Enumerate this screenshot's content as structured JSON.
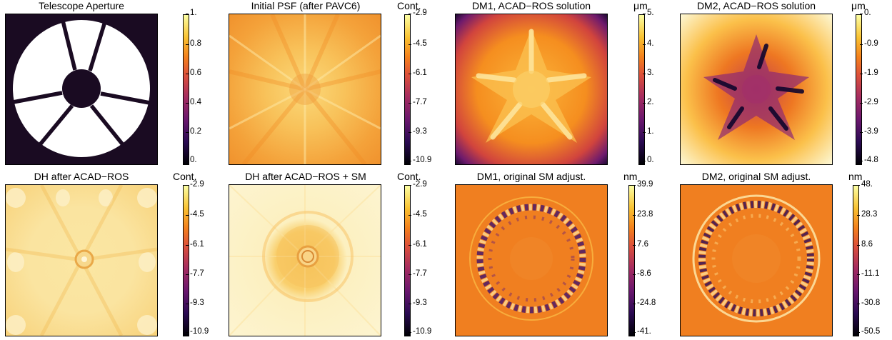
{
  "panels": [
    {
      "title": "Telescope Aperture",
      "unit": "",
      "ticks": [
        "1.",
        "0.8",
        "0.6",
        "0.4",
        "0.2",
        "0."
      ],
      "colormap": "inferno"
    },
    {
      "title": "Initial PSF (after PAVC6)",
      "unit": "Cont.",
      "ticks": [
        "-2.9",
        "-4.5",
        "-6.1",
        "-7.7",
        "-9.3",
        "-10.9"
      ],
      "colormap": "inferno"
    },
    {
      "title": "DM1, ACAD−ROS solution",
      "unit": "μm",
      "ticks": [
        "5.",
        "4.",
        "3.",
        "2.",
        "1.",
        "0."
      ],
      "colormap": "inferno"
    },
    {
      "title": "DM2, ACAD−ROS solution",
      "unit": "μm",
      "ticks": [
        "0.",
        "-0.9",
        "-1.9",
        "-2.9",
        "-3.9",
        "-4.8"
      ],
      "colormap": "inferno"
    },
    {
      "title": "DH after ACAD−ROS",
      "unit": "Cont.",
      "ticks": [
        "-2.9",
        "-4.5",
        "-6.1",
        "-7.7",
        "-9.3",
        "-10.9"
      ],
      "colormap": "inferno"
    },
    {
      "title": "DH after ACAD−ROS + SM",
      "unit": "Cont.",
      "ticks": [
        "-2.9",
        "-4.5",
        "-6.1",
        "-7.7",
        "-9.3",
        "-10.9"
      ],
      "colormap": "inferno"
    },
    {
      "title": "DM1, original SM adjust.",
      "unit": "nm",
      "ticks": [
        "39.9",
        "23.8",
        "7.6",
        "-8.6",
        "-24.8",
        "-41."
      ],
      "colormap": "inferno"
    },
    {
      "title": "DM2, original SM adjust.",
      "unit": "nm",
      "ticks": [
        "48.",
        "28.3",
        "8.6",
        "-11.1",
        "-30.8",
        "-50.5"
      ],
      "colormap": "inferno"
    }
  ]
}
